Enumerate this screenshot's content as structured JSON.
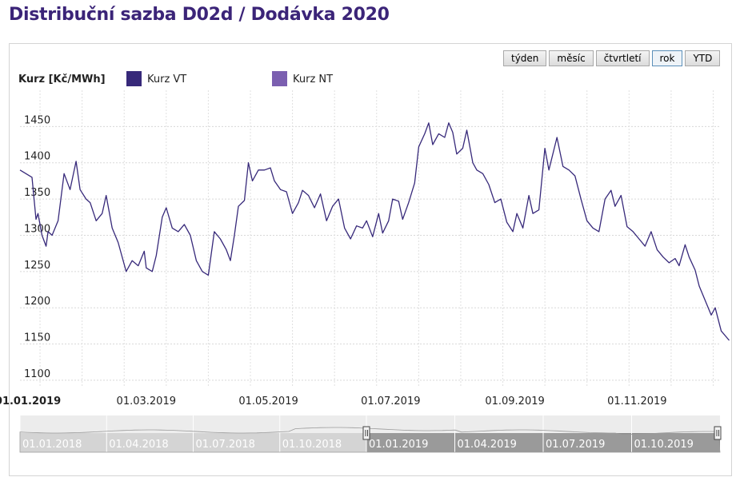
{
  "page": {
    "title": "Distribuční sazba D02d / Dodávka 2020"
  },
  "controls": {
    "ranges": [
      {
        "label": "týden",
        "active": false
      },
      {
        "label": "měsíc",
        "active": false
      },
      {
        "label": "čtvrtletí",
        "active": false
      },
      {
        "label": "rok",
        "active": true
      },
      {
        "label": "YTD",
        "active": false
      }
    ]
  },
  "colors": {
    "vt": "#37297a",
    "nt": "#7b5fb0",
    "title": "#3b2478",
    "navigator_selected": "#8c8c8c",
    "navigator_unselected": "#cfcfcf"
  },
  "chart_data": {
    "type": "line",
    "ylabel": "Kurz [Kč/MWh]",
    "legend": [
      "Kurz VT",
      "Kurz NT"
    ],
    "legend_position": "top-left",
    "ylim": [
      1090,
      1500
    ],
    "yticks": [
      1100,
      1150,
      1200,
      1250,
      1300,
      1350,
      1400,
      1450
    ],
    "xlim": [
      "2018-12-28",
      "2019-12-12"
    ],
    "xticks": [
      {
        "date": "2019-01-01",
        "label": "01.01.2019",
        "bold": true
      },
      {
        "date": "2019-03-01",
        "label": "01.03.2019",
        "bold": false
      },
      {
        "date": "2019-05-01",
        "label": "01.05.2019",
        "bold": false
      },
      {
        "date": "2019-07-01",
        "label": "01.07.2019",
        "bold": false
      },
      {
        "date": "2019-09-01",
        "label": "01.09.2019",
        "bold": false
      },
      {
        "date": "2019-11-01",
        "label": "01.11.2019",
        "bold": false
      }
    ],
    "grid": true,
    "series": [
      {
        "name": "Kurz VT",
        "points": [
          [
            "2018-12-28",
            1390
          ],
          [
            "2019-01-03",
            1380
          ],
          [
            "2019-01-05",
            1322
          ],
          [
            "2019-01-06",
            1330
          ],
          [
            "2019-01-08",
            1300
          ],
          [
            "2019-01-10",
            1285
          ],
          [
            "2019-01-11",
            1305
          ],
          [
            "2019-01-13",
            1300
          ],
          [
            "2019-01-16",
            1320
          ],
          [
            "2019-01-19",
            1385
          ],
          [
            "2019-01-22",
            1363
          ],
          [
            "2019-01-25",
            1402
          ],
          [
            "2019-01-27",
            1363
          ],
          [
            "2019-01-30",
            1350
          ],
          [
            "2019-02-01",
            1345
          ],
          [
            "2019-02-04",
            1320
          ],
          [
            "2019-02-07",
            1330
          ],
          [
            "2019-02-09",
            1355
          ],
          [
            "2019-02-12",
            1310
          ],
          [
            "2019-02-15",
            1290
          ],
          [
            "2019-02-19",
            1250
          ],
          [
            "2019-02-22",
            1265
          ],
          [
            "2019-02-25",
            1258
          ],
          [
            "2019-02-28",
            1278
          ],
          [
            "2019-03-01",
            1255
          ],
          [
            "2019-03-04",
            1250
          ],
          [
            "2019-03-06",
            1272
          ],
          [
            "2019-03-09",
            1325
          ],
          [
            "2019-03-11",
            1338
          ],
          [
            "2019-03-14",
            1310
          ],
          [
            "2019-03-17",
            1305
          ],
          [
            "2019-03-20",
            1315
          ],
          [
            "2019-03-23",
            1300
          ],
          [
            "2019-03-26",
            1265
          ],
          [
            "2019-03-29",
            1250
          ],
          [
            "2019-04-01",
            1245
          ],
          [
            "2019-04-04",
            1305
          ],
          [
            "2019-04-07",
            1295
          ],
          [
            "2019-04-10",
            1280
          ],
          [
            "2019-04-12",
            1265
          ],
          [
            "2019-04-14",
            1300
          ],
          [
            "2019-04-16",
            1340
          ],
          [
            "2019-04-19",
            1348
          ],
          [
            "2019-04-21",
            1400
          ],
          [
            "2019-04-23",
            1375
          ],
          [
            "2019-04-26",
            1390
          ],
          [
            "2019-04-29",
            1390
          ],
          [
            "2019-05-02",
            1393
          ],
          [
            "2019-05-04",
            1375
          ],
          [
            "2019-05-07",
            1363
          ],
          [
            "2019-05-10",
            1360
          ],
          [
            "2019-05-13",
            1330
          ],
          [
            "2019-05-16",
            1345
          ],
          [
            "2019-05-18",
            1362
          ],
          [
            "2019-05-21",
            1355
          ],
          [
            "2019-05-24",
            1338
          ],
          [
            "2019-05-27",
            1357
          ],
          [
            "2019-05-30",
            1320
          ],
          [
            "2019-06-02",
            1340
          ],
          [
            "2019-06-05",
            1350
          ],
          [
            "2019-06-08",
            1310
          ],
          [
            "2019-06-11",
            1295
          ],
          [
            "2019-06-14",
            1313
          ],
          [
            "2019-06-17",
            1310
          ],
          [
            "2019-06-19",
            1320
          ],
          [
            "2019-06-22",
            1298
          ],
          [
            "2019-06-25",
            1330
          ],
          [
            "2019-06-27",
            1303
          ],
          [
            "2019-06-30",
            1320
          ],
          [
            "2019-07-02",
            1350
          ],
          [
            "2019-07-05",
            1347
          ],
          [
            "2019-07-07",
            1322
          ],
          [
            "2019-07-10",
            1345
          ],
          [
            "2019-07-13",
            1372
          ],
          [
            "2019-07-15",
            1422
          ],
          [
            "2019-07-18",
            1440
          ],
          [
            "2019-07-20",
            1455
          ],
          [
            "2019-07-22",
            1425
          ],
          [
            "2019-07-25",
            1440
          ],
          [
            "2019-07-28",
            1435
          ],
          [
            "2019-07-30",
            1455
          ],
          [
            "2019-08-01",
            1442
          ],
          [
            "2019-08-03",
            1412
          ],
          [
            "2019-08-06",
            1420
          ],
          [
            "2019-08-08",
            1445
          ],
          [
            "2019-08-11",
            1400
          ],
          [
            "2019-08-13",
            1390
          ],
          [
            "2019-08-16",
            1385
          ],
          [
            "2019-08-19",
            1370
          ],
          [
            "2019-08-22",
            1345
          ],
          [
            "2019-08-25",
            1350
          ],
          [
            "2019-08-28",
            1318
          ],
          [
            "2019-08-31",
            1305
          ],
          [
            "2019-09-02",
            1330
          ],
          [
            "2019-09-05",
            1310
          ],
          [
            "2019-09-08",
            1355
          ],
          [
            "2019-09-10",
            1330
          ],
          [
            "2019-09-13",
            1335
          ],
          [
            "2019-09-16",
            1420
          ],
          [
            "2019-09-18",
            1390
          ],
          [
            "2019-09-22",
            1435
          ],
          [
            "2019-09-25",
            1395
          ],
          [
            "2019-09-28",
            1390
          ],
          [
            "2019-10-01",
            1382
          ],
          [
            "2019-10-04",
            1350
          ],
          [
            "2019-10-07",
            1320
          ],
          [
            "2019-10-10",
            1310
          ],
          [
            "2019-10-13",
            1305
          ],
          [
            "2019-10-16",
            1350
          ],
          [
            "2019-10-19",
            1362
          ],
          [
            "2019-10-21",
            1340
          ],
          [
            "2019-10-24",
            1355
          ],
          [
            "2019-10-27",
            1312
          ],
          [
            "2019-10-30",
            1305
          ],
          [
            "2019-11-02",
            1295
          ],
          [
            "2019-11-05",
            1285
          ],
          [
            "2019-11-08",
            1305
          ],
          [
            "2019-11-11",
            1280
          ],
          [
            "2019-11-14",
            1270
          ],
          [
            "2019-11-17",
            1262
          ],
          [
            "2019-11-20",
            1268
          ],
          [
            "2019-11-22",
            1258
          ],
          [
            "2019-11-25",
            1287
          ],
          [
            "2019-11-27",
            1270
          ],
          [
            "2019-11-30",
            1252
          ],
          [
            "2019-12-02",
            1230
          ],
          [
            "2019-12-05",
            1210
          ],
          [
            "2019-12-08",
            1190
          ],
          [
            "2019-12-10",
            1200
          ],
          [
            "2019-12-13",
            1168
          ],
          [
            "2019-12-17",
            1155
          ]
        ]
      },
      {
        "name": "Kurz NT",
        "points": []
      }
    ],
    "navigator": {
      "labels": [
        "01.01.2018",
        "01.04.2018",
        "01.07.2018",
        "01.10.2018",
        "01.01.2019",
        "01.04.2019",
        "01.07.2019",
        "01.10.2019"
      ],
      "selected_from_label": "01.01.2019"
    }
  }
}
